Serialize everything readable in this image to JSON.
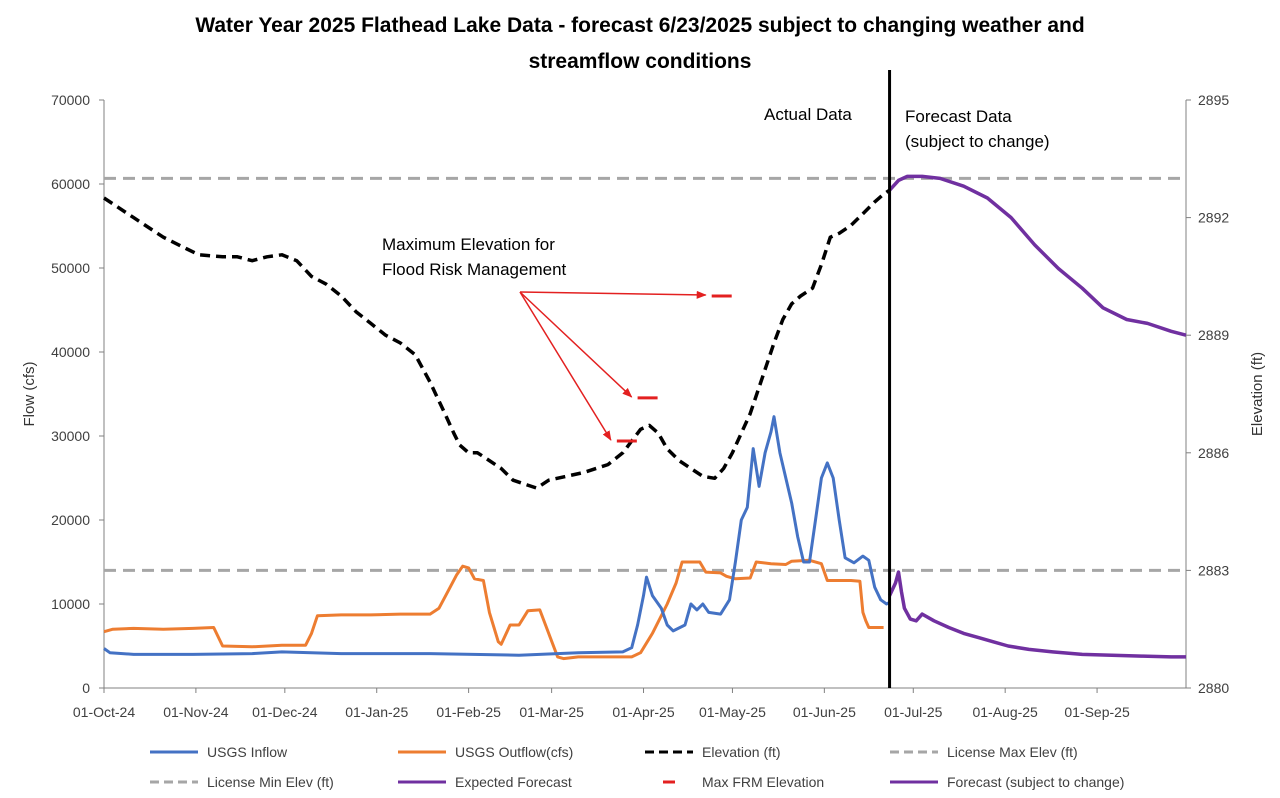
{
  "chart_data": {
    "type": "line",
    "title_line1": "Water Year 2025 Flathead Lake Data - forecast 6/23/2025 subject to changing weather and",
    "title_line2": "streamflow conditions",
    "ylabel": "Flow (cfs)",
    "y2label": "Elevation (ft)",
    "ylim": [
      0,
      70000
    ],
    "y2lim": [
      2880,
      2895
    ],
    "y_ticks": [
      "0",
      "10000",
      "20000",
      "30000",
      "40000",
      "50000",
      "60000",
      "70000"
    ],
    "y2_ticks": [
      "2880",
      "2883",
      "2886",
      "2889",
      "2892",
      "2895"
    ],
    "x_ticks": [
      {
        "label": "01-Oct-24",
        "day": 0
      },
      {
        "label": "01-Nov-24",
        "day": 31
      },
      {
        "label": "01-Dec-24",
        "day": 61
      },
      {
        "label": "01-Jan-25",
        "day": 92
      },
      {
        "label": "01-Feb-25",
        "day": 123
      },
      {
        "label": "01-Mar-25",
        "day": 151
      },
      {
        "label": "01-Apr-25",
        "day": 182
      },
      {
        "label": "01-May-25",
        "day": 212
      },
      {
        "label": "01-Jun-25",
        "day": 243
      },
      {
        "label": "01-Jul-25",
        "day": 273
      },
      {
        "label": "01-Aug-25",
        "day": 304
      },
      {
        "label": "01-Sep-25",
        "day": 335
      }
    ],
    "x_range_days": [
      0,
      365
    ],
    "forecast_divider_day": 265,
    "annotations": {
      "actual": "Actual Data",
      "forecast_line1": "Forecast Data",
      "forecast_line2": "(subject to change)",
      "frm_line1": "Maximum Elevation for",
      "frm_line2": "Flood Risk Management"
    },
    "license_max_elev": 2893,
    "license_min_elev": 2883,
    "max_frm_elevation": [
      [
        173,
        2886.3
      ],
      [
        180,
        2887.4
      ],
      [
        205,
        2890.0
      ]
    ],
    "series": {
      "inflow": {
        "name": "USGS Inflow",
        "color": "#4472C4",
        "points": [
          [
            0,
            4700
          ],
          [
            2,
            4200
          ],
          [
            10,
            4000
          ],
          [
            30,
            4000
          ],
          [
            50,
            4100
          ],
          [
            60,
            4300
          ],
          [
            80,
            4100
          ],
          [
            110,
            4100
          ],
          [
            140,
            3900
          ],
          [
            160,
            4200
          ],
          [
            175,
            4300
          ],
          [
            178,
            4800
          ],
          [
            180,
            7500
          ],
          [
            182,
            11000
          ],
          [
            183,
            13200
          ],
          [
            185,
            11000
          ],
          [
            188,
            9500
          ],
          [
            190,
            7500
          ],
          [
            192,
            6800
          ],
          [
            196,
            7500
          ],
          [
            198,
            10000
          ],
          [
            200,
            9300
          ],
          [
            202,
            10000
          ],
          [
            204,
            9000
          ],
          [
            208,
            8800
          ],
          [
            211,
            10500
          ],
          [
            213,
            15000
          ],
          [
            215,
            20000
          ],
          [
            217,
            21500
          ],
          [
            219,
            28500
          ],
          [
            221,
            24000
          ],
          [
            223,
            28000
          ],
          [
            225,
            30500
          ],
          [
            226,
            32300
          ],
          [
            228,
            28000
          ],
          [
            230,
            25000
          ],
          [
            232,
            22000
          ],
          [
            234,
            18000
          ],
          [
            236,
            15000
          ],
          [
            238,
            15000
          ],
          [
            240,
            20000
          ],
          [
            242,
            25000
          ],
          [
            244,
            26800
          ],
          [
            246,
            25000
          ],
          [
            248,
            20000
          ],
          [
            250,
            15500
          ],
          [
            253,
            14900
          ],
          [
            256,
            15700
          ],
          [
            258,
            15200
          ],
          [
            260,
            12000
          ],
          [
            262,
            10500
          ],
          [
            264,
            10000
          ],
          [
            265,
            10200
          ]
        ]
      },
      "outflow": {
        "name": "USGS Outflow(cfs)",
        "color": "#ED7D31",
        "points": [
          [
            0,
            6700
          ],
          [
            3,
            7000
          ],
          [
            10,
            7100
          ],
          [
            20,
            7000
          ],
          [
            30,
            7100
          ],
          [
            37,
            7200
          ],
          [
            40,
            5000
          ],
          [
            50,
            4900
          ],
          [
            60,
            5100
          ],
          [
            68,
            5100
          ],
          [
            70,
            6500
          ],
          [
            72,
            8600
          ],
          [
            80,
            8700
          ],
          [
            90,
            8700
          ],
          [
            100,
            8800
          ],
          [
            110,
            8800
          ],
          [
            113,
            9500
          ],
          [
            116,
            11500
          ],
          [
            119,
            13500
          ],
          [
            121,
            14500
          ],
          [
            123,
            14300
          ],
          [
            125,
            13000
          ],
          [
            128,
            12800
          ],
          [
            130,
            9000
          ],
          [
            133,
            5500
          ],
          [
            134,
            5200
          ],
          [
            137,
            7500
          ],
          [
            140,
            7500
          ],
          [
            143,
            9200
          ],
          [
            147,
            9300
          ],
          [
            150,
            6500
          ],
          [
            153,
            3700
          ],
          [
            155,
            3500
          ],
          [
            160,
            3700
          ],
          [
            170,
            3700
          ],
          [
            178,
            3700
          ],
          [
            181,
            4200
          ],
          [
            185,
            6500
          ],
          [
            190,
            10000
          ],
          [
            193,
            12500
          ],
          [
            195,
            15000
          ],
          [
            201,
            15000
          ],
          [
            203,
            13800
          ],
          [
            208,
            13700
          ],
          [
            210,
            13300
          ],
          [
            213,
            13000
          ],
          [
            218,
            13100
          ],
          [
            220,
            15000
          ],
          [
            225,
            14800
          ],
          [
            230,
            14700
          ],
          [
            232,
            15100
          ],
          [
            238,
            15200
          ],
          [
            242,
            14800
          ],
          [
            244,
            12800
          ],
          [
            252,
            12800
          ],
          [
            255,
            12700
          ],
          [
            256,
            9000
          ],
          [
            257,
            8000
          ],
          [
            258,
            7200
          ],
          [
            263,
            7200
          ]
        ]
      },
      "elevation": {
        "name": "Elevation (ft)",
        "color": "#000000",
        "points": [
          [
            0,
            2892.5
          ],
          [
            10,
            2892
          ],
          [
            20,
            2891.5
          ],
          [
            28,
            2891.2
          ],
          [
            32,
            2891.05
          ],
          [
            40,
            2891
          ],
          [
            45,
            2891
          ],
          [
            50,
            2890.9
          ],
          [
            55,
            2891.0
          ],
          [
            60,
            2891.05
          ],
          [
            65,
            2890.9
          ],
          [
            70,
            2890.5
          ],
          [
            75,
            2890.3
          ],
          [
            80,
            2890.0
          ],
          [
            85,
            2889.6
          ],
          [
            90,
            2889.3
          ],
          [
            95,
            2889.0
          ],
          [
            100,
            2888.8
          ],
          [
            105,
            2888.5
          ],
          [
            110,
            2887.8
          ],
          [
            115,
            2887.0
          ],
          [
            118,
            2886.5
          ],
          [
            120,
            2886.2
          ],
          [
            123,
            2886.0
          ],
          [
            126,
            2886.0
          ],
          [
            130,
            2885.8
          ],
          [
            134,
            2885.6
          ],
          [
            138,
            2885.3
          ],
          [
            142,
            2885.2
          ],
          [
            146,
            2885.1
          ],
          [
            150,
            2885.3
          ],
          [
            156,
            2885.4
          ],
          [
            162,
            2885.5
          ],
          [
            170,
            2885.7
          ],
          [
            175,
            2886.0
          ],
          [
            178,
            2886.3
          ],
          [
            181,
            2886.6
          ],
          [
            184,
            2886.7
          ],
          [
            187,
            2886.5
          ],
          [
            190,
            2886.1
          ],
          [
            194,
            2885.8
          ],
          [
            198,
            2885.6
          ],
          [
            202,
            2885.4
          ],
          [
            206,
            2885.35
          ],
          [
            209,
            2885.6
          ],
          [
            212,
            2886.0
          ],
          [
            215,
            2886.5
          ],
          [
            218,
            2887.0
          ],
          [
            222,
            2887.9
          ],
          [
            226,
            2888.8
          ],
          [
            229,
            2889.4
          ],
          [
            232,
            2889.8
          ],
          [
            235,
            2890.0
          ],
          [
            239,
            2890.2
          ],
          [
            242,
            2890.8
          ],
          [
            245,
            2891.5
          ],
          [
            248,
            2891.6
          ],
          [
            252,
            2891.8
          ],
          [
            256,
            2892.1
          ],
          [
            260,
            2892.4
          ],
          [
            263,
            2892.6
          ],
          [
            265,
            2892.7
          ]
        ]
      },
      "expected_forecast": {
        "name": "Expected Forecast",
        "color": "#7030A0",
        "points": [
          [
            265,
            2892.7
          ],
          [
            268,
            2892.95
          ],
          [
            271,
            2893.05
          ],
          [
            276,
            2893.05
          ],
          [
            282,
            2893.0
          ],
          [
            290,
            2892.8
          ],
          [
            298,
            2892.5
          ],
          [
            306,
            2892.0
          ],
          [
            314,
            2891.3
          ],
          [
            322,
            2890.7
          ],
          [
            330,
            2890.2
          ],
          [
            337,
            2889.7
          ],
          [
            345,
            2889.4
          ],
          [
            352,
            2889.3
          ],
          [
            360,
            2889.1
          ],
          [
            365,
            2889.0
          ]
        ]
      },
      "forecast_flow": {
        "name": "Forecast (subject to change)",
        "color": "#7030A0",
        "points": [
          [
            265,
            11000
          ],
          [
            267,
            12500
          ],
          [
            268,
            13800
          ],
          [
            269,
            11500
          ],
          [
            270,
            9500
          ],
          [
            272,
            8200
          ],
          [
            274,
            8000
          ],
          [
            276,
            8800
          ],
          [
            280,
            8000
          ],
          [
            285,
            7200
          ],
          [
            290,
            6500
          ],
          [
            295,
            6000
          ],
          [
            300,
            5500
          ],
          [
            305,
            5000
          ],
          [
            312,
            4600
          ],
          [
            320,
            4300
          ],
          [
            330,
            4000
          ],
          [
            340,
            3900
          ],
          [
            350,
            3800
          ],
          [
            360,
            3700
          ],
          [
            365,
            3700
          ]
        ]
      }
    },
    "legend": [
      {
        "key": "inflow",
        "label": "USGS Inflow",
        "style": "solid-blue"
      },
      {
        "key": "outflow",
        "label": "USGS Outflow(cfs)",
        "style": "solid-orange"
      },
      {
        "key": "elevation",
        "label": "Elevation (ft)",
        "style": "dash-black"
      },
      {
        "key": "max",
        "label": "License Max Elev (ft)",
        "style": "dash-gray"
      },
      {
        "key": "min",
        "label": "License Min Elev (ft)",
        "style": "dash-gray"
      },
      {
        "key": "expected",
        "label": "Expected Forecast",
        "style": "solid-purple"
      },
      {
        "key": "frm",
        "label": "Max FRM Elevation",
        "style": "short-red"
      },
      {
        "key": "forecast",
        "label": "Forecast (subject to change)",
        "style": "solid-purple"
      }
    ],
    "colors": {
      "license": "#A6A6A6",
      "frm": "#E32020",
      "arrow": "#E32020",
      "axis": "#808080",
      "divider": "#000000"
    }
  }
}
